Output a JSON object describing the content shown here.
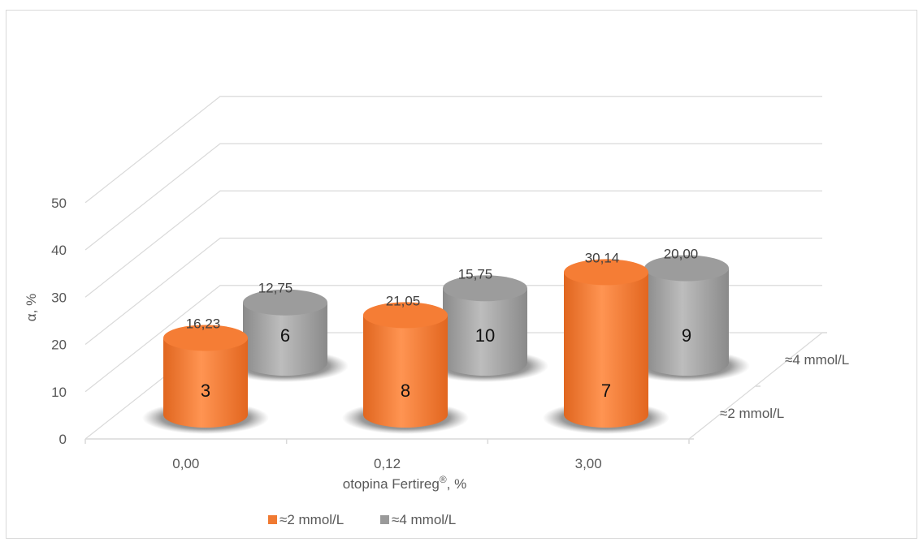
{
  "chart_data": {
    "type": "bar",
    "subtype": "3d-cylinder",
    "categories": [
      "0,00",
      "0,12",
      "3,00"
    ],
    "series": [
      {
        "name": "≈2 mmol/L",
        "color": "#f07a32",
        "values": [
          16.23,
          21.05,
          30.14
        ],
        "value_labels": [
          "16,23",
          "21,05",
          "30,14"
        ],
        "inner_labels": [
          "3",
          "8",
          "7"
        ]
      },
      {
        "name": "≈4 mmol/L",
        "color": "#8c8c8c",
        "values": [
          12.75,
          15.75,
          20.0
        ],
        "value_labels": [
          "12,75",
          "15,75",
          "20,00"
        ],
        "inner_labels": [
          "6",
          "10",
          "9"
        ]
      }
    ],
    "xlabel": "otopina Fertireg",
    "xlabel_sup": "®",
    "xlabel_suffix": ", %",
    "ylabel": "α, %",
    "ylim": [
      0,
      50
    ],
    "yticks": [
      "0",
      "10",
      "20",
      "30",
      "40",
      "50"
    ],
    "depth_labels": [
      "≈2 mmol/L",
      "≈4 mmol/L"
    ],
    "legend_position": "bottom",
    "grid": true
  }
}
